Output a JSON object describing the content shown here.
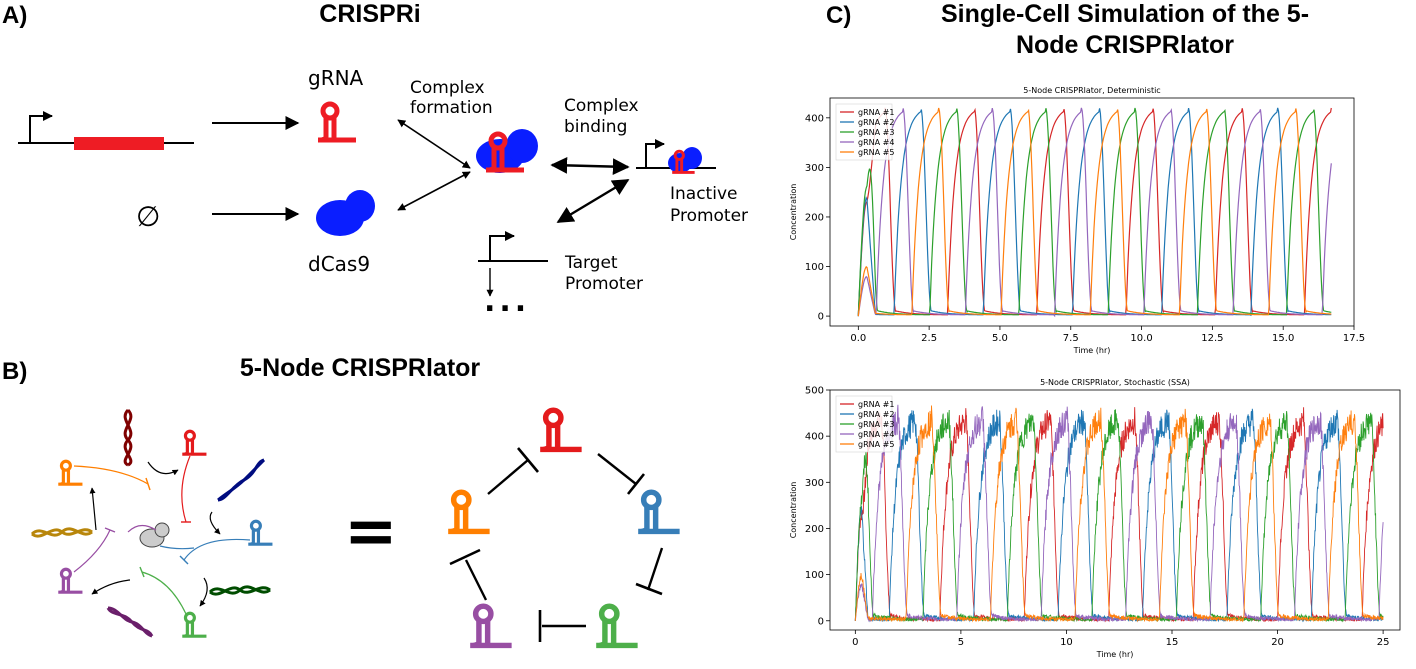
{
  "panelA": {
    "label": "A)",
    "title": "CRISPRi",
    "grna": "gRNA",
    "dcas9": "dCas9",
    "complex_formation": [
      "Complex",
      "formation"
    ],
    "complex_binding": [
      "Complex",
      "binding"
    ],
    "inactive_promoter": [
      "Inactive",
      "Promoter"
    ],
    "target_promoter": [
      "Target",
      "Promoter"
    ],
    "null_symbol": "∅",
    "ellipsis": "..."
  },
  "panelB": {
    "label": "B)",
    "title": "5-Node CRISPRlator",
    "equals": "="
  },
  "panelC": {
    "label": "C)",
    "title": [
      "Single-Cell Simulation of the 5-",
      "Node CRISPRlator"
    ]
  },
  "colors": {
    "red": "#d62728",
    "blue": "#1f77b4",
    "green": "#2ca02c",
    "purple": "#9467bd",
    "orange": "#ff7f0e",
    "bright_red": "#ee1c24",
    "dcas9_blue": "#0a1eff",
    "node_red": "#e41a1c",
    "node_blue": "#377eb8",
    "node_green": "#4daf4a",
    "node_purple": "#984ea3",
    "node_orange": "#ff7f00",
    "dark_red": "#7f0000",
    "dark_blue": "#000c80",
    "dark_green": "#004d00",
    "dark_purple": "#6a1f6a",
    "dark_orange": "#b8860b"
  },
  "chart_data": [
    {
      "type": "line",
      "title": "5-Node CRISPRlator, Deterministic",
      "xlabel": "Time (hr)",
      "ylabel": "Concentration",
      "xlim": [
        -1,
        17.5
      ],
      "ylim": [
        -20,
        440
      ],
      "xticks": [
        "0.0",
        "2.5",
        "5.0",
        "7.5",
        "10.0",
        "12.5",
        "15.0",
        "17.5"
      ],
      "yticks": [
        "0",
        "100",
        "200",
        "300",
        "400"
      ],
      "legend_position": "top-left",
      "series": [
        {
          "name": "gRNA #1",
          "color": "#d62728"
        },
        {
          "name": "gRNA #2",
          "color": "#1f77b4"
        },
        {
          "name": "gRNA #3",
          "color": "#2ca02c"
        },
        {
          "name": "gRNA #4",
          "color": "#9467bd"
        },
        {
          "name": "gRNA #5",
          "color": "#ff7f0e"
        }
      ],
      "x_end": 16.7,
      "peak": 420,
      "period_hr": 3.15
    },
    {
      "type": "line",
      "title": "5-Node CRISPRlator, Stochastic (SSA)",
      "xlabel": "Time (hr)",
      "ylabel": "Concentration",
      "xlim": [
        -1.2,
        25.8
      ],
      "ylim": [
        -20,
        500
      ],
      "xticks": [
        "0",
        "5",
        "10",
        "15",
        "20",
        "25"
      ],
      "yticks": [
        "0",
        "100",
        "200",
        "300",
        "400",
        "500"
      ],
      "legend_position": "top-left",
      "series": [
        {
          "name": "gRNA #1",
          "color": "#d62728"
        },
        {
          "name": "gRNA #2",
          "color": "#1f77b4"
        },
        {
          "name": "gRNA #3",
          "color": "#2ca02c"
        },
        {
          "name": "gRNA #4",
          "color": "#9467bd"
        },
        {
          "name": "gRNA #5",
          "color": "#ff7f0e"
        }
      ],
      "x_end": 25,
      "peak": 440,
      "period_hr": 4.0
    }
  ]
}
